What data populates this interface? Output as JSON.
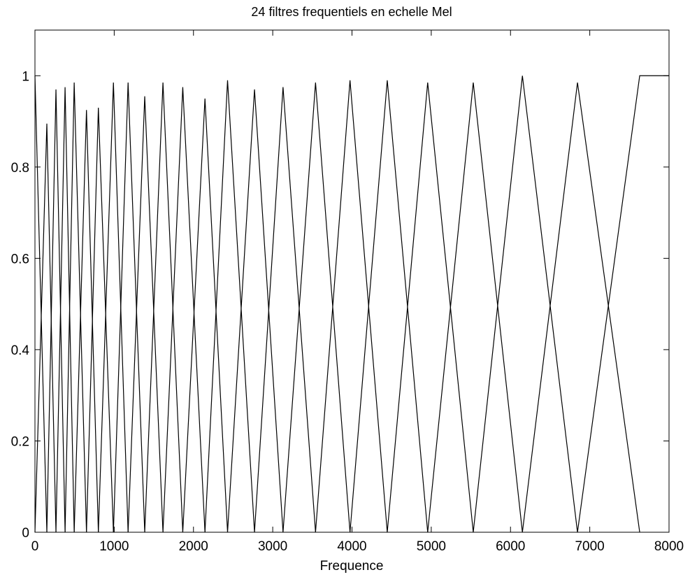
{
  "chart_data": {
    "type": "line",
    "title": "24 filtres frequentiels en echelle Mel",
    "xlabel": "Frequence",
    "ylabel": "",
    "xlim": [
      0,
      8000
    ],
    "ylim": [
      0,
      1.1
    ],
    "x_ticks": [
      "0",
      "1000",
      "2000",
      "3000",
      "4000",
      "5000",
      "6000",
      "7000",
      "8000"
    ],
    "y_ticks": [
      "0",
      "0.2",
      "0.4",
      "0.6",
      "0.8",
      "1"
    ],
    "grid": false,
    "line_color": "#000000",
    "filter_centers": [
      0,
      150,
      265,
      380,
      495,
      650,
      800,
      990,
      1175,
      1385,
      1615,
      1865,
      2145,
      2430,
      2770,
      3130,
      3540,
      3975,
      4445,
      4955,
      5530,
      6150,
      6845,
      7630
    ],
    "filter_peaks": [
      1.0,
      0.895,
      0.97,
      0.975,
      0.985,
      0.925,
      0.93,
      0.985,
      0.985,
      0.955,
      0.985,
      0.975,
      0.95,
      0.99,
      0.97,
      0.975,
      0.985,
      0.99,
      0.99,
      0.985,
      0.985,
      1.0,
      0.985,
      1.0
    ],
    "last_filter_plateau_to": 8000
  }
}
